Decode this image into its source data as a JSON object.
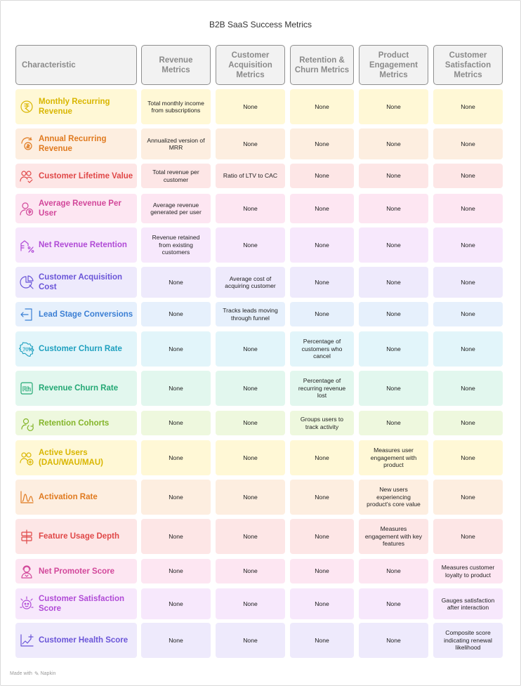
{
  "title": "B2B SaaS Success Metrics",
  "headers": [
    "Characteristic",
    "Revenue Metrics",
    "Customer Acquisition Metrics",
    "Retention & Churn Metrics",
    "Product Engagement Metrics",
    "Customer Satisfaction Metrics"
  ],
  "rows": [
    {
      "label": "Monthly Recurring Revenue",
      "icon": "rupee-coin-icon",
      "color": "#d9b600",
      "bg": "#fff8d6",
      "cells": [
        "Total monthly income from subscriptions",
        "None",
        "None",
        "None",
        "None"
      ]
    },
    {
      "label": "Annual Recurring Revenue",
      "icon": "money-cycle-icon",
      "color": "#e07a1f",
      "bg": "#fdeee0",
      "cells": [
        "Annualized version of MRR",
        "None",
        "None",
        "None",
        "None"
      ]
    },
    {
      "label": "Customer Lifetime Value",
      "icon": "users-check-icon",
      "color": "#e04848",
      "bg": "#fde6e6",
      "cells": [
        "Total revenue per customer",
        "Ratio of LTV to CAC",
        "None",
        "None",
        "None"
      ]
    },
    {
      "label": "Average Revenue Per User",
      "icon": "user-dollar-icon",
      "color": "#d2479a",
      "bg": "#fde6f2",
      "cells": [
        "Average revenue generated per user",
        "None",
        "None",
        "None",
        "None"
      ]
    },
    {
      "label": "Net Revenue Retention",
      "icon": "percent-building-icon",
      "color": "#b04ad6",
      "bg": "#f7e8fc",
      "cells": [
        "Revenue retained from existing customers",
        "None",
        "None",
        "None",
        "None"
      ]
    },
    {
      "label": "Customer Acquisition Cost",
      "icon": "pie-search-icon",
      "color": "#6a55d8",
      "bg": "#eeeafc",
      "cells": [
        "None",
        "Average cost of acquiring customer",
        "None",
        "None",
        "None"
      ]
    },
    {
      "label": "Lead Stage Conversions",
      "icon": "login-arrow-icon",
      "color": "#3b7fd4",
      "bg": "#e6f0fc",
      "cells": [
        "None",
        "Tracks leads moving through funnel",
        "None",
        "None",
        "None"
      ]
    },
    {
      "label": "Customer Churn Rate",
      "icon": "percent-badge-icon",
      "color": "#1ea0bf",
      "bg": "#e2f5fa",
      "cells": [
        "None",
        "None",
        "Percentage of customers who cancel",
        "None",
        "None"
      ]
    },
    {
      "label": "Revenue Churn Rate",
      "icon": "rh-box-icon",
      "color": "#23a874",
      "bg": "#e2f7ee",
      "cells": [
        "None",
        "None",
        "Percentage of recurring revenue lost",
        "None",
        "None"
      ]
    },
    {
      "label": "Retention Cohorts",
      "icon": "user-cycle-icon",
      "color": "#84b52a",
      "bg": "#eef8de",
      "cells": [
        "None",
        "None",
        "Groups users to track activity",
        "None",
        "None"
      ]
    },
    {
      "label": "Active Users (DAU/WAU/MAU)",
      "icon": "users-plus-icon",
      "color": "#d9b600",
      "bg": "#fff8d6",
      "cells": [
        "None",
        "None",
        "None",
        "Measures user engagement with product",
        "None"
      ]
    },
    {
      "label": "Activation Rate",
      "icon": "chart-peaks-icon",
      "color": "#e07a1f",
      "bg": "#fdeee0",
      "cells": [
        "None",
        "None",
        "None",
        "New users experiencing product's core value",
        "None"
      ]
    },
    {
      "label": "Feature Usage Depth",
      "icon": "signpost-icon",
      "color": "#e04848",
      "bg": "#fde6e6",
      "cells": [
        "None",
        "None",
        "None",
        "Measures engagement with key features",
        "None"
      ]
    },
    {
      "label": "Net Promoter Score",
      "icon": "user-support-icon",
      "color": "#d2479a",
      "bg": "#fde6f2",
      "cells": [
        "None",
        "None",
        "None",
        "None",
        "Measures customer loyalty to product"
      ]
    },
    {
      "label": "Customer Satisfaction Score",
      "icon": "satisfaction-icon",
      "color": "#b04ad6",
      "bg": "#f7e8fc",
      "cells": [
        "None",
        "None",
        "None",
        "None",
        "Gauges satisfaction after interaction"
      ]
    },
    {
      "label": "Customer Health Score",
      "icon": "chart-plus-icon",
      "color": "#6a55d8",
      "bg": "#eeeafc",
      "cells": [
        "None",
        "None",
        "None",
        "None",
        "Composite score indicating renewal likelihood"
      ]
    }
  ],
  "footer": {
    "made_with": "Made with",
    "brand": "Napkin"
  }
}
